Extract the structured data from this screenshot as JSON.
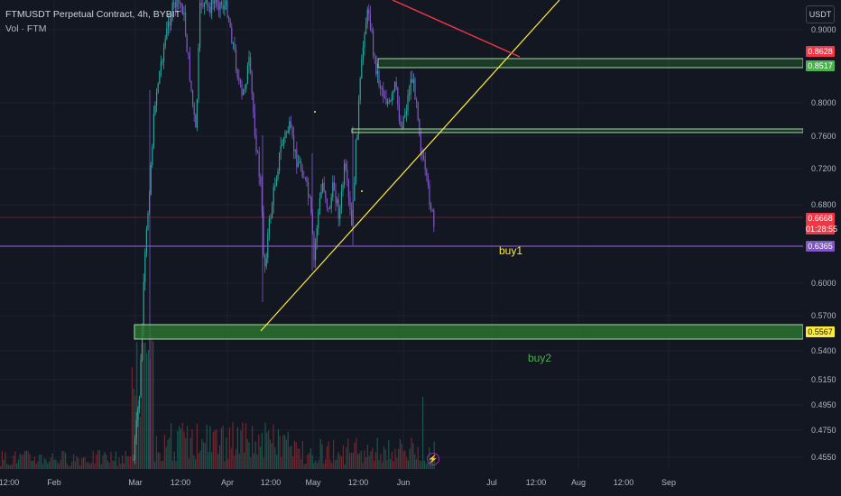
{
  "header": {
    "title": "FTMUSDT Perpetual Contract, 4h, BYBIT",
    "indicator": "Vol · FTM"
  },
  "currency": "USDT",
  "price_axis": [
    "0.9000",
    "0.8000",
    "0.7600",
    "0.7200",
    "0.6800",
    "0.6000",
    "0.5700",
    "0.5400",
    "0.5150",
    "0.4950",
    "0.4750",
    "0.4550"
  ],
  "badges": {
    "b1": {
      "text": "0.8628",
      "color": "#f23645"
    },
    "b2": {
      "text": "0.8517",
      "color": "#4caf50"
    },
    "current": {
      "text": "0.6668",
      "color": "#f23645"
    },
    "countdown": {
      "text": "01:28:55",
      "color": "#f23645"
    },
    "b4": {
      "text": "0.6365",
      "color": "#7e57c2"
    },
    "b5": {
      "text": "0.5567",
      "color": "#ffeb3b"
    }
  },
  "time_axis": [
    "12:00",
    "Feb",
    "Mar",
    "12:00",
    "Apr",
    "12:00",
    "May",
    "12:00",
    "Jun",
    "Jul",
    "12:00",
    "Aug",
    "12:00",
    "Sep"
  ],
  "annotations": {
    "buy1": {
      "text": "buy1",
      "color": "#ffeb3b"
    },
    "buy2": {
      "text": "buy2",
      "color": "#4caf50"
    }
  },
  "colors": {
    "background": "#131722",
    "candle_up": "#26a69a",
    "candle_down": "#7e57c2",
    "zone_fill": "#2e7d32",
    "zone_border": "#a5d6a7",
    "trendline": "#ffeb3b",
    "red_line": "#f23645",
    "support_line": "#7e57c2",
    "volume_up": "#1e5f52",
    "volume_down": "#7c2b34"
  },
  "icons": {
    "alert": "bolt-icon"
  }
}
